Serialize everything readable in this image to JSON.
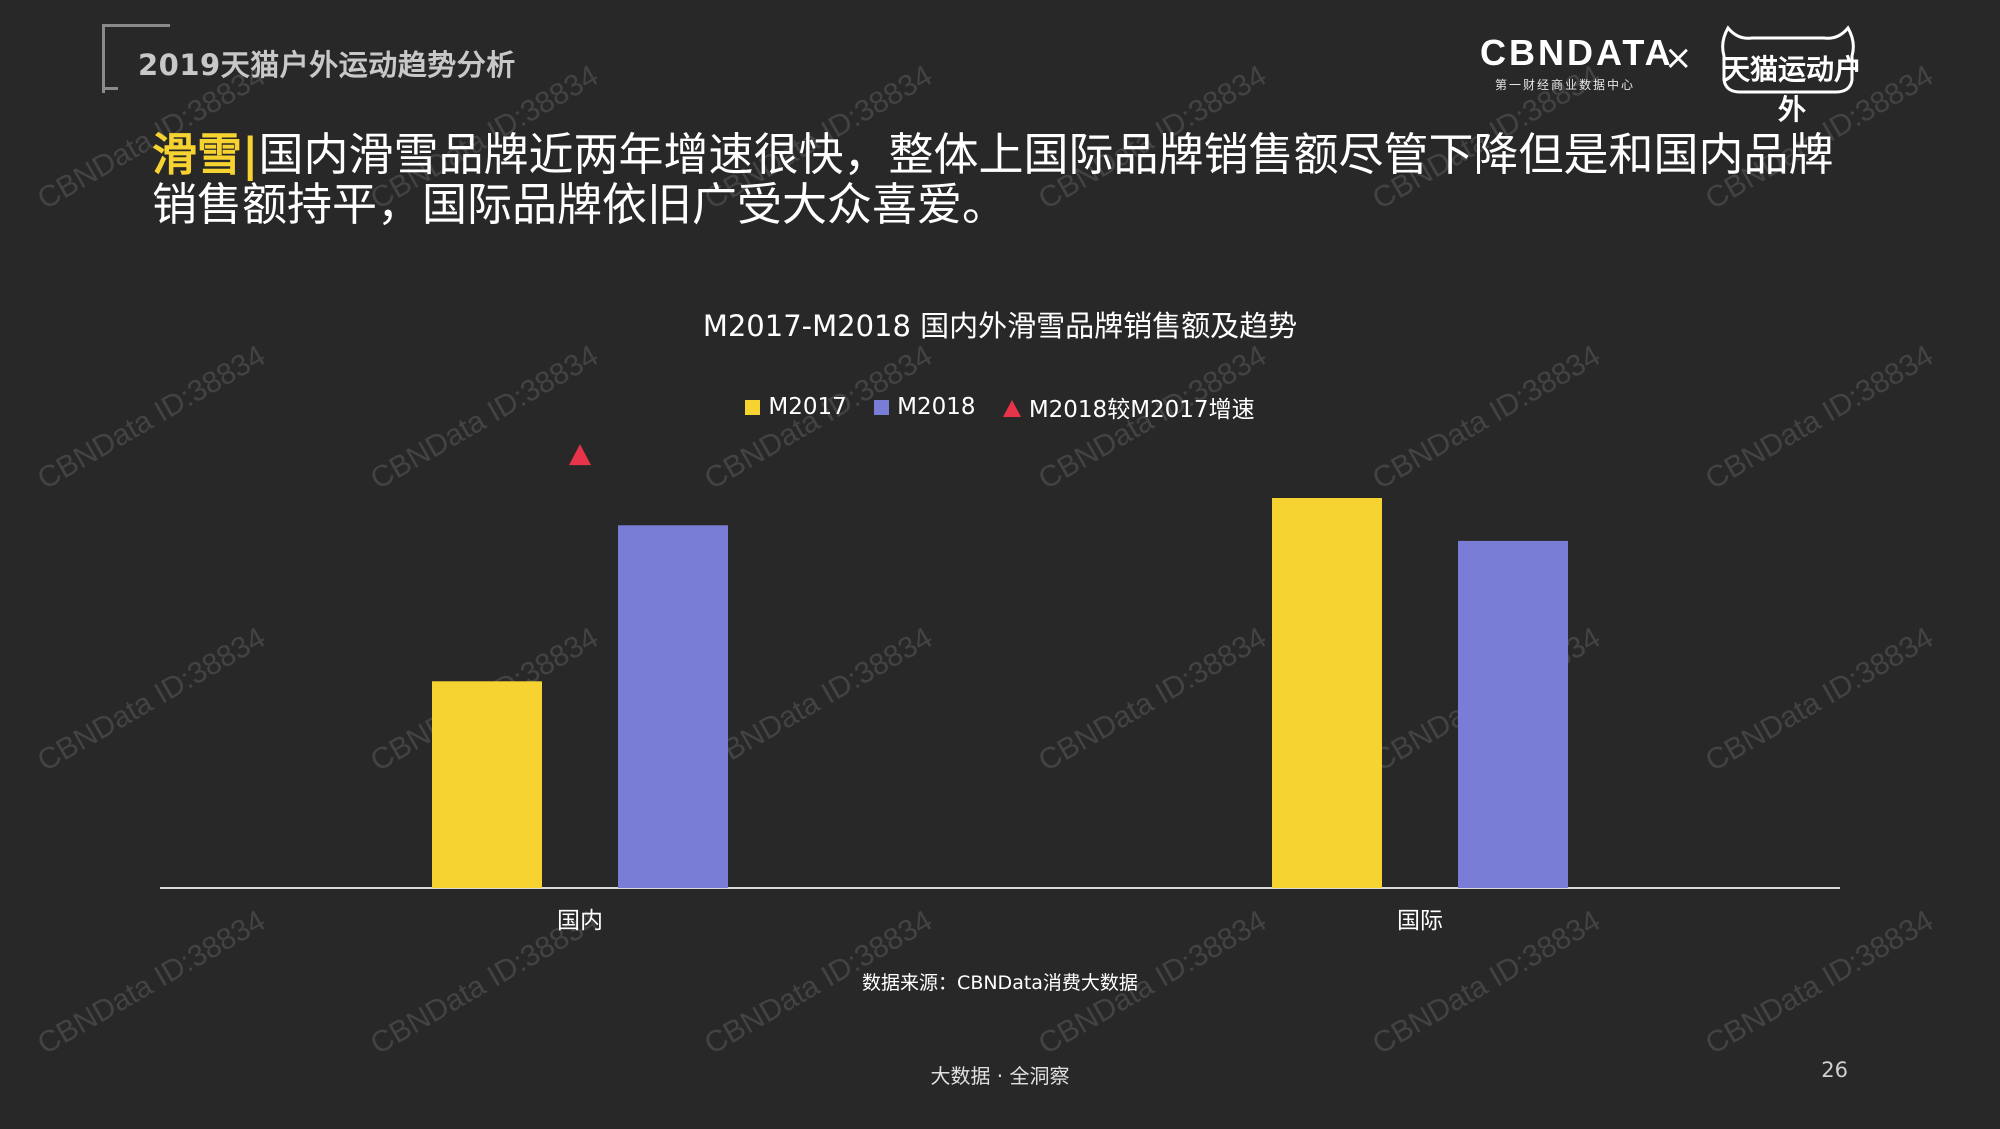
{
  "header": {
    "report_title": "2019天猫户外运动趋势分析",
    "logo_cbn": "CBNDATA",
    "logo_cbn_sub": "第一财经商业数据中心",
    "logo_x": "×",
    "logo_tmall": "天猫运动户外"
  },
  "headline": {
    "tag": "滑雪",
    "divider": "|",
    "text": "国内滑雪品牌近两年增速很快，整体上国际品牌销售额尽管下降但是和国内品牌销售额持平，国际品牌依旧广受大众喜爱。"
  },
  "watermark_text": "CBNData ID:38834",
  "colors": {
    "background": "#282828",
    "m2017": "#f7d332",
    "m2018": "#7a7dd6",
    "growth": "#e8344a",
    "accent": "#f7d332"
  },
  "chart_data": {
    "type": "bar",
    "title": "M2017-M2018 国内外滑雪品牌销售额及趋势",
    "categories": [
      "国内",
      "国际"
    ],
    "series": [
      {
        "name": "M2017",
        "values": [
          0.53,
          1.0
        ]
      },
      {
        "name": "M2018",
        "values": [
          0.93,
          0.89
        ]
      }
    ],
    "growth_series": {
      "name": "M2018较M2017增速",
      "marker": "triangle",
      "values": [
        1.11,
        null
      ]
    },
    "ylim": [
      0,
      1.2
    ],
    "y_axis_shown": false,
    "grid": false,
    "legend_position": "top-center"
  },
  "legend": {
    "m2017": "M2017",
    "m2018": "M2018",
    "growth": "M2018较M2017增速"
  },
  "source": "数据来源：CBNData消费大数据",
  "footer": "大数据 · 全洞察",
  "page_number": "26"
}
